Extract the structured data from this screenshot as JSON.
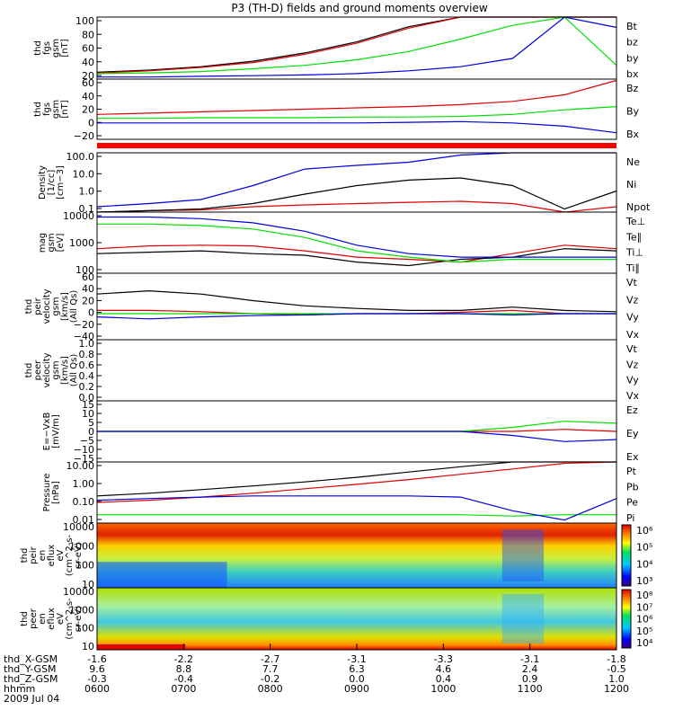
{
  "title": "P3 (TH-D) fields and ground moments overview",
  "colors": {
    "black": "#000000",
    "red": "#e00000",
    "green": "#00e000",
    "blue": "#0000e0"
  },
  "chart_data": [
    {
      "id": "bmag",
      "type": "line",
      "ylabel": [
        "thd",
        "fgs",
        "gsm",
        "[nT]"
      ],
      "yticks": [
        "100",
        "80",
        "60",
        "40",
        "20"
      ],
      "ylim": [
        10,
        100
      ],
      "x": [
        0,
        0.1,
        0.2,
        0.3,
        0.4,
        0.5,
        0.6,
        0.7,
        0.8,
        0.9,
        1.0
      ],
      "series": [
        {
          "name": "Bt",
          "color": "black",
          "values": [
            20,
            23,
            28,
            36,
            48,
            64,
            86,
            100,
            100,
            100,
            100
          ]
        },
        {
          "name": "bz",
          "color": "red",
          "values": [
            19,
            22,
            27,
            34,
            46,
            62,
            84,
            100,
            100,
            100,
            100
          ]
        },
        {
          "name": "by",
          "color": "green",
          "values": [
            18,
            19,
            21,
            25,
            30,
            38,
            50,
            68,
            88,
            100,
            30
          ]
        },
        {
          "name": "bx",
          "color": "blue",
          "values": [
            13,
            13,
            14,
            15,
            16,
            18,
            22,
            28,
            40,
            100,
            85
          ]
        }
      ]
    },
    {
      "id": "bcomp",
      "type": "line",
      "ylabel": [
        "thd",
        "fgs",
        "gsm",
        "[nT]"
      ],
      "yticks": [
        "60",
        "40",
        "20",
        "0",
        "−20"
      ],
      "ylim": [
        -30,
        62
      ],
      "x": [
        0,
        0.1,
        0.2,
        0.3,
        0.4,
        0.5,
        0.6,
        0.7,
        0.8,
        0.9,
        1.0
      ],
      "series": [
        {
          "name": "Bz",
          "color": "red",
          "values": [
            8,
            10,
            12,
            14,
            16,
            18,
            20,
            23,
            28,
            38,
            60
          ]
        },
        {
          "name": "By",
          "color": "green",
          "values": [
            2,
            2,
            3,
            3,
            3,
            4,
            4,
            5,
            8,
            15,
            20
          ]
        },
        {
          "name": "Bx",
          "color": "blue",
          "values": [
            -5,
            -5,
            -5,
            -5,
            -5,
            -5,
            -4,
            -3,
            -5,
            -10,
            -20
          ]
        }
      ]
    },
    {
      "id": "density",
      "type": "line",
      "log": true,
      "ylabel": [
        "Density",
        "[1/cc]",
        "[cm−3]"
      ],
      "yticks": [
        "100.0",
        "10.0",
        "1.0",
        "0.1"
      ],
      "ylim": [
        0.1,
        200
      ],
      "x": [
        0,
        0.1,
        0.2,
        0.3,
        0.4,
        0.5,
        0.6,
        0.7,
        0.8,
        0.9,
        1.0
      ],
      "series": [
        {
          "name": "Ne",
          "color": "red",
          "values": [
            0.1,
            0.12,
            0.13,
            0.2,
            0.25,
            0.3,
            0.35,
            0.4,
            0.3,
            0.1,
            0.2
          ]
        },
        {
          "name": "Ni",
          "color": "black",
          "values": [
            0.1,
            0.12,
            0.15,
            0.3,
            1.0,
            3,
            6,
            8,
            3,
            0.15,
            1.5
          ]
        },
        {
          "name": "Npot",
          "color": "blue",
          "values": [
            0.2,
            0.3,
            0.5,
            3,
            25,
            40,
            60,
            150,
            200,
            200,
            200
          ]
        }
      ]
    },
    {
      "id": "temperature",
      "type": "line",
      "log": true,
      "ylabel": [
        "mag",
        "gsm",
        "[eV]"
      ],
      "yticks": [
        "10000",
        "1000",
        "100"
      ],
      "ylim": [
        80,
        12000
      ],
      "x": [
        0,
        0.1,
        0.2,
        0.3,
        0.4,
        0.5,
        0.6,
        0.7,
        0.8,
        0.9,
        1.0
      ],
      "series": [
        {
          "name": "Te⊥",
          "color": "red",
          "values": [
            600,
            750,
            800,
            750,
            500,
            300,
            250,
            200,
            400,
            800,
            600
          ]
        },
        {
          "name": "Te∥",
          "color": "black",
          "values": [
            400,
            450,
            500,
            400,
            350,
            200,
            150,
            250,
            300,
            600,
            500
          ]
        },
        {
          "name": "Ti⊥",
          "color": "blue",
          "values": [
            8000,
            8000,
            7000,
            5000,
            2500,
            800,
            400,
            300,
            300,
            300,
            300
          ]
        },
        {
          "name": "Ti∥",
          "color": "green",
          "values": [
            4500,
            4500,
            4000,
            3000,
            1500,
            500,
            300,
            200,
            250,
            250,
            250
          ]
        }
      ]
    },
    {
      "id": "peir-velocity",
      "type": "line",
      "ylabel": [
        "thd",
        "peir",
        "velocity",
        "gsm",
        "[km/s]",
        "(All Qs)"
      ],
      "yticks": [
        "60",
        "40",
        "20",
        "0",
        "−20",
        "−40"
      ],
      "ylim": [
        -40,
        62
      ],
      "x": [
        0,
        0.1,
        0.2,
        0.3,
        0.4,
        0.5,
        0.6,
        0.7,
        0.8,
        0.9,
        1.0
      ],
      "series": [
        {
          "name": "Vt",
          "color": "black",
          "values": [
            30,
            35,
            30,
            20,
            12,
            8,
            5,
            5,
            10,
            5,
            3
          ]
        },
        {
          "name": "Vz",
          "color": "red",
          "values": [
            5,
            5,
            3,
            0,
            -2,
            0,
            0,
            2,
            5,
            0,
            0
          ]
        },
        {
          "name": "Vy",
          "color": "green",
          "values": [
            0,
            0,
            0,
            0,
            0,
            0,
            0,
            0,
            0,
            0,
            0
          ]
        },
        {
          "name": "Vx",
          "color": "blue",
          "values": [
            -5,
            -8,
            -5,
            -3,
            -2,
            0,
            0,
            0,
            -2,
            0,
            0
          ]
        }
      ]
    },
    {
      "id": "peer-velocity",
      "type": "line",
      "ylabel": [
        "thd",
        "peer",
        "velocity",
        "gsm",
        "[km/s]",
        "(All Qs)"
      ],
      "yticks": [
        "1.0",
        "0.8",
        "0.6",
        "0.4",
        "0.2",
        "0.0"
      ],
      "ylim": [
        0,
        1.0
      ],
      "x": [],
      "series": [
        {
          "name": "Vt",
          "color": "black",
          "values": []
        },
        {
          "name": "Vz",
          "color": "red",
          "values": []
        },
        {
          "name": "Vy",
          "color": "green",
          "values": []
        },
        {
          "name": "Vx",
          "color": "blue",
          "values": []
        }
      ]
    },
    {
      "id": "efield",
      "type": "line",
      "ylabel": [
        "E=−VxB",
        "[mV/m]"
      ],
      "yticks": [
        "15",
        "10",
        "5",
        "0",
        "−5",
        "−10",
        "−15"
      ],
      "ylim": [
        -15,
        15
      ],
      "x": [
        0,
        0.1,
        0.2,
        0.3,
        0.4,
        0.5,
        0.6,
        0.7,
        0.8,
        0.9,
        1.0
      ],
      "series": [
        {
          "name": "Ez",
          "color": "red",
          "values": [
            0,
            0,
            0,
            0,
            0,
            0,
            0,
            0,
            0,
            1,
            0
          ]
        },
        {
          "name": "Ey",
          "color": "green",
          "values": [
            0,
            0,
            0,
            0,
            0,
            0,
            0,
            0,
            2,
            5,
            4
          ]
        },
        {
          "name": "Ex",
          "color": "blue",
          "values": [
            0,
            0,
            0,
            0,
            0,
            0,
            0,
            0,
            -2,
            -5,
            -4
          ]
        }
      ]
    },
    {
      "id": "pressure",
      "type": "line",
      "log": true,
      "ylabel": [
        "Pressure",
        "[nPa]"
      ],
      "yticks": [
        "10.00",
        "1.00",
        "0.10",
        "0.01"
      ],
      "ylim": [
        0.01,
        30
      ],
      "x": [
        0,
        0.1,
        0.2,
        0.3,
        0.4,
        0.5,
        0.6,
        0.7,
        0.8,
        0.9,
        1.0
      ],
      "series": [
        {
          "name": "Pt",
          "color": "black",
          "values": [
            0.35,
            0.5,
            0.8,
            1.3,
            2.2,
            4,
            8,
            16,
            30,
            30,
            30
          ]
        },
        {
          "name": "Pb",
          "color": "red",
          "values": [
            0.15,
            0.2,
            0.3,
            0.5,
            0.9,
            1.6,
            3,
            6,
            12,
            25,
            30
          ]
        },
        {
          "name": "Pe",
          "color": "green",
          "values": [
            0.03,
            0.03,
            0.03,
            0.03,
            0.03,
            0.03,
            0.03,
            0.03,
            0.025,
            0.03,
            0.03
          ]
        },
        {
          "name": "Pi",
          "color": "blue",
          "values": [
            0.2,
            0.25,
            0.3,
            0.35,
            0.35,
            0.35,
            0.35,
            0.3,
            0.05,
            0.015,
            0.25
          ]
        }
      ]
    },
    {
      "id": "peir-spectrogram",
      "type": "heatmap",
      "ylabel": [
        "thd",
        "peir",
        "en",
        "eflux",
        "eV",
        "(cm^2-s-",
        "sr-eV)"
      ],
      "yticks": [
        "10000",
        "1000",
        "100",
        "10"
      ],
      "colorbar_ticks": [
        "10⁶",
        "10⁵",
        "10⁴",
        "10³"
      ]
    },
    {
      "id": "peer-spectrogram",
      "type": "heatmap",
      "ylabel": [
        "thd",
        "peer",
        "en",
        "eflux",
        "eV",
        "(cm^2-s-",
        "sr-eV)"
      ],
      "yticks": [
        "10000",
        "1000",
        "100",
        "10"
      ],
      "colorbar_ticks": [
        "10⁸",
        "10⁷",
        "10⁶",
        "10⁵",
        "10⁴"
      ]
    }
  ],
  "xaxis": {
    "row_labels": [
      "thd_X-GSM",
      "thd_Y-GSM",
      "thd_Z-GSM",
      "hhmm",
      "2009 Jul 04"
    ],
    "columns": [
      [
        "-1.6",
        "9.6",
        "-0.3",
        "0600"
      ],
      [
        "-2.2",
        "8.8",
        "-0.4",
        "0700"
      ],
      [
        "-2.7",
        "7.7",
        "-0.2",
        "0800"
      ],
      [
        "-3.1",
        "6.3",
        "0.0",
        "0900"
      ],
      [
        "-3.3",
        "4.6",
        "0.4",
        "1000"
      ],
      [
        "-3.1",
        "2.4",
        "0.9",
        "1100"
      ],
      [
        "-1.8",
        "-0.5",
        "1.0",
        "1200"
      ]
    ]
  }
}
